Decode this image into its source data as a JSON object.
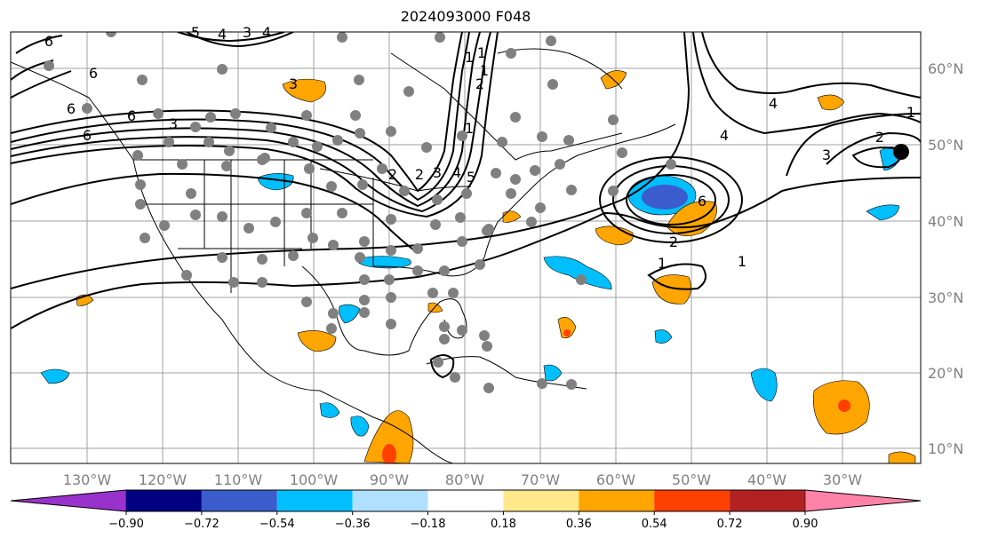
{
  "title": "2024093000 F048",
  "longitude_labels": [
    "130°W",
    "120°W",
    "110°W",
    "100°W",
    "90°W",
    "80°W",
    "70°W",
    "60°W",
    "50°W",
    "40°W",
    "30°W"
  ],
  "latitude_labels": [
    "60°N",
    "50°N",
    "40°N",
    "30°N",
    "20°N",
    "10°N"
  ],
  "contour_labels": [
    "6",
    "6",
    "6",
    "5",
    "4",
    "3",
    "4",
    "6",
    "6",
    "3",
    "3",
    "2",
    "1",
    "1",
    "1",
    "1",
    "2",
    "2",
    "3",
    "4",
    "5",
    "6",
    "4",
    "3",
    "1",
    "1",
    "4",
    "2",
    "2",
    "1"
  ],
  "colorbar": {
    "ticks": [
      "−0.90",
      "−0.72",
      "−0.54",
      "−0.36",
      "−0.18",
      "0.18",
      "0.36",
      "0.54",
      "0.72",
      "0.90"
    ],
    "colors": [
      "#9932cc",
      "#000080",
      "#3a5ccc",
      "#00bfff",
      "#b0e0ff",
      "#ffffff",
      "#ffe88a",
      "#ffa500",
      "#ff4000",
      "#b22222",
      "#ff82a8"
    ]
  },
  "colors": {
    "grid": "#a0a0a0",
    "coast": "#000000",
    "station_dot": "#808080",
    "contour": "#000000"
  }
}
